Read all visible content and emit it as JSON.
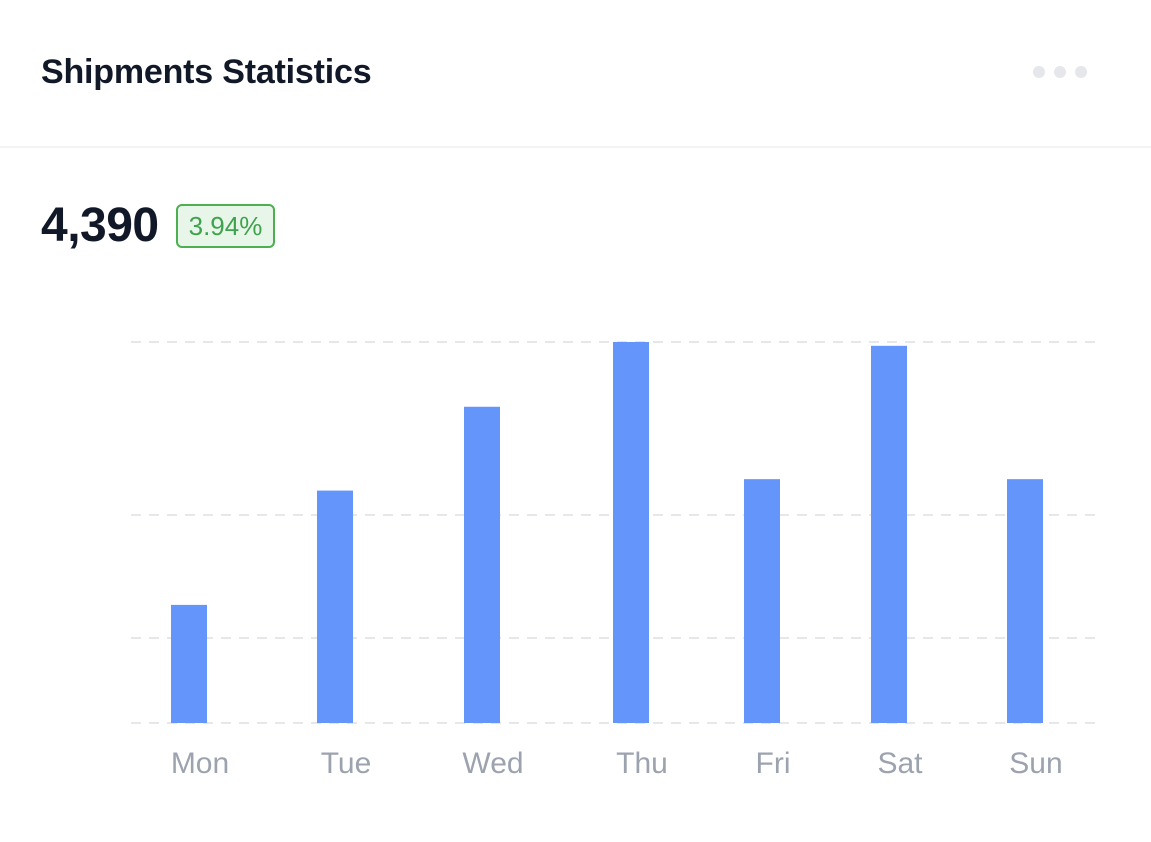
{
  "header": {
    "title": "Shipments Statistics",
    "more_icon": "more-horizontal-icon"
  },
  "summary": {
    "value": "4,390",
    "change": "3.94%"
  },
  "colors": {
    "bar": "#6495fb",
    "grid": "#e5e7eb",
    "badge_border": "#4caf50",
    "badge_text": "#3fa34d"
  },
  "chart_data": {
    "type": "bar",
    "categories": [
      "Mon",
      "Tue",
      "Wed",
      "Thu",
      "Fri",
      "Sat",
      "Sun"
    ],
    "values": [
      31,
      61,
      83,
      100,
      64,
      99,
      64
    ],
    "ylim": [
      0,
      100
    ],
    "grid": true,
    "legend": "none",
    "title": "",
    "xlabel": "",
    "ylabel": ""
  }
}
